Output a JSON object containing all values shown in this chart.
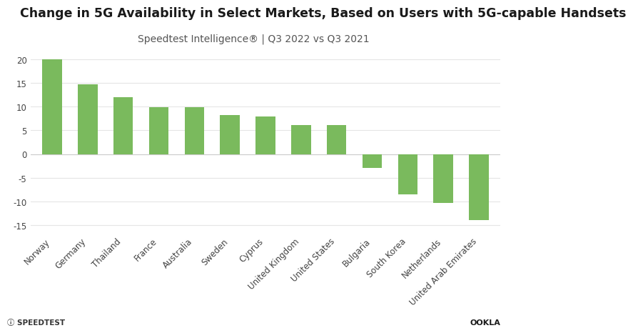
{
  "title": "Change in 5G Availability in Select Markets, Based on Users with 5G-capable Handsets",
  "subtitle": "Speedtest Intelligence® | Q3 2022 vs Q3 2021",
  "categories": [
    "Norway",
    "Germany",
    "Thailand",
    "France",
    "Australia",
    "Sweden",
    "Cyprus",
    "United Kingdom",
    "United States",
    "Bulgaria",
    "South Korea",
    "Netherlands",
    "United Arab Emirates"
  ],
  "values": [
    20.0,
    14.7,
    12.0,
    9.9,
    9.9,
    8.2,
    8.0,
    6.1,
    6.1,
    -3.0,
    -8.5,
    -10.3,
    -14.0
  ],
  "bar_color": "#7aba5d",
  "background_color": "#ffffff",
  "ylim": [
    -17,
    22
  ],
  "yticks": [
    -15,
    -10,
    -5,
    0,
    5,
    10,
    15,
    20
  ],
  "grid_color": "#e5e5e5",
  "title_fontsize": 12.5,
  "subtitle_fontsize": 10,
  "tick_fontsize": 8.5,
  "axis_label_color": "#444444",
  "footer_left": "SPEEDTEST",
  "footer_right": "OOKLA"
}
